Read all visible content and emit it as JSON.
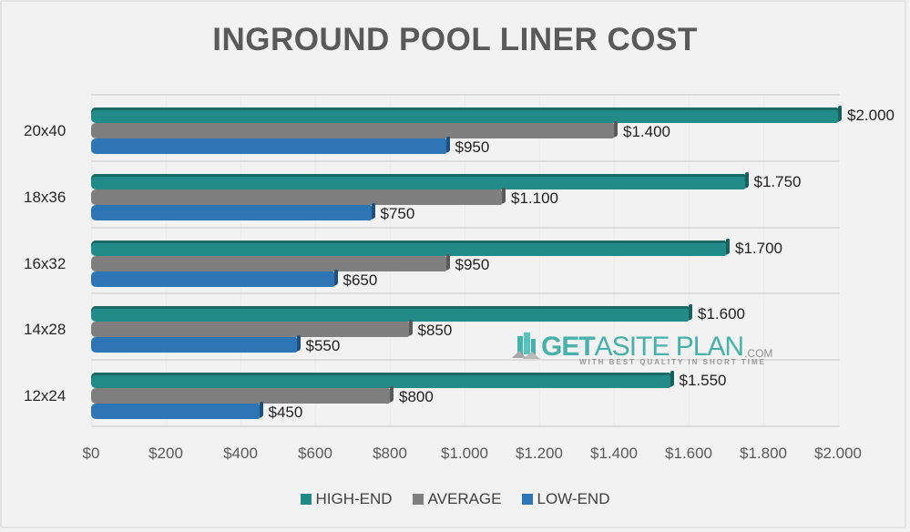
{
  "chart_data": {
    "type": "bar",
    "orientation": "horizontal",
    "title": "INGROUND POOL LINER COST",
    "categories": [
      "20x40",
      "18x36",
      "16x32",
      "14x28",
      "12x24"
    ],
    "series": [
      {
        "name": "HIGH-END",
        "color": "#228b87",
        "values": [
          2000,
          1750,
          1700,
          1600,
          1550
        ],
        "labels": [
          "$2.000",
          "$1.750",
          "$1.700",
          "$1.600",
          "$1.550"
        ]
      },
      {
        "name": "AVERAGE",
        "color": "#7f7f7f",
        "values": [
          1400,
          1100,
          950,
          850,
          800
        ],
        "labels": [
          "$1.400",
          "$1.100",
          "$950",
          "$850",
          "$800"
        ]
      },
      {
        "name": "LOW-END",
        "color": "#2e75b6",
        "values": [
          950,
          750,
          650,
          550,
          450
        ],
        "labels": [
          "$950",
          "$750",
          "$650",
          "$550",
          "$450"
        ]
      }
    ],
    "xlabel": "",
    "ylabel": "",
    "xlim": [
      0,
      2000
    ],
    "xticks": [
      "$0",
      "$200",
      "$400",
      "$600",
      "$800",
      "$1.000",
      "$1.200",
      "$1.400",
      "$1.600",
      "$1.800",
      "$2.000"
    ],
    "legend_position": "bottom",
    "grid": true
  },
  "watermark": {
    "brand_bold": "GET",
    "brand_thin": "ASITE PLAN",
    "suffix": ".COM",
    "tagline": "WITH BEST QUALITY IN SHORT TIME"
  }
}
